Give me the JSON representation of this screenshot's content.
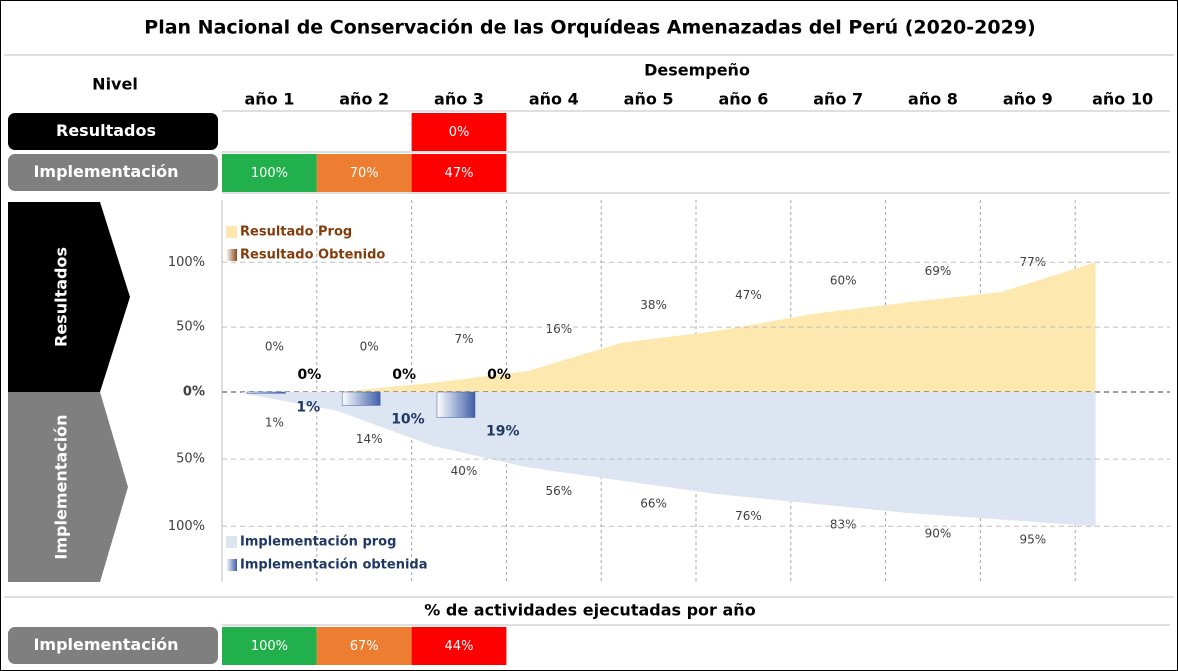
{
  "header": {
    "title": "Plan Nacional de Conservación de las Orquídeas Amenazadas del Perú (2020-2029)"
  },
  "table": {
    "level_header": "Nivel",
    "performance_header": "Desempeño",
    "years": [
      "año 1",
      "año 2",
      "año 3",
      "año 4",
      "año 5",
      "año 6",
      "año 7",
      "año 8",
      "año 9",
      "año 10"
    ],
    "rows": [
      {
        "label": "Resultados",
        "label_color": "#000000",
        "cells": [
          null,
          null,
          {
            "text": "0%",
            "color": "#ff0000"
          }
        ]
      },
      {
        "label": "Implementación",
        "label_color": "#7f7f7f",
        "cells": [
          {
            "text": "100%",
            "color": "#21b04b"
          },
          {
            "text": "70%",
            "color": "#ed7d31"
          },
          {
            "text": "47%",
            "color": "#ff0000"
          }
        ]
      }
    ]
  },
  "chart_data": [
    {
      "type": "area",
      "ylabel": "Resultados",
      "ylim": [
        0,
        148
      ],
      "inverted": false,
      "grid": true,
      "legend": "upper left",
      "yticks": [
        {
          "value": 0,
          "label": "0%"
        },
        {
          "value": 50,
          "label": "50%"
        },
        {
          "value": 100,
          "label": "100%"
        }
      ],
      "series": [
        {
          "name": "Resultado Prog",
          "type": "area",
          "color": "#fde9b0",
          "values": [
            0,
            0,
            7,
            16,
            38,
            47,
            60,
            69,
            77,
            100
          ],
          "value_labels": [
            "0%",
            "0%",
            "7%",
            "16%",
            "38%",
            "47%",
            "60%",
            "69%",
            "77%",
            null
          ]
        },
        {
          "name": "Resultado Obtenido",
          "type": "bar",
          "color": "#8b4a1c",
          "values": [
            0,
            0,
            0
          ],
          "value_labels": [
            "0%",
            "0%",
            "0%"
          ]
        }
      ]
    },
    {
      "type": "area",
      "ylabel": "Implementación",
      "ylim": [
        0,
        140
      ],
      "inverted": true,
      "grid": true,
      "legend": "lower left",
      "yticks": [
        {
          "value": 50,
          "label": "50%"
        },
        {
          "value": 100,
          "label": "100%"
        }
      ],
      "series": [
        {
          "name": "Implementación prog",
          "type": "area",
          "color": "#dde5f2",
          "values": [
            1,
            14,
            40,
            56,
            66,
            76,
            83,
            90,
            95,
            100
          ],
          "value_labels": [
            "1%",
            "14%",
            "40%",
            "56%",
            "66%",
            "76%",
            "83%",
            "90%",
            "95%",
            null
          ]
        },
        {
          "name": "Implementación obtenida",
          "type": "bar",
          "color": "#3f5fa8",
          "values": [
            1,
            10,
            19
          ],
          "value_labels": [
            "1%",
            "10%",
            "19%"
          ]
        }
      ]
    }
  ],
  "footer": {
    "title": "% de actividades ejecutadas por año",
    "rows": [
      {
        "label": "Implementación",
        "label_color": "#7f7f7f",
        "cells": [
          {
            "text": "100%",
            "color": "#21b04b"
          },
          {
            "text": "67%",
            "color": "#ed7d31"
          },
          {
            "text": "44%",
            "color": "#ff0000"
          }
        ]
      }
    ]
  }
}
